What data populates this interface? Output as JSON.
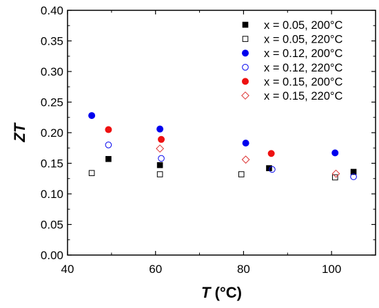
{
  "chart_data": {
    "type": "scatter",
    "xlabel": "T (°C)",
    "xlabel_var": "T",
    "xlabel_unit": " (°C)",
    "ylabel": "ZT",
    "xlim": [
      40,
      110
    ],
    "ylim": [
      0.0,
      0.4
    ],
    "x_ticks": [
      "40",
      "60",
      "80",
      "100"
    ],
    "y_ticks": [
      "0.00",
      "0.05",
      "0.10",
      "0.15",
      "0.20",
      "0.25",
      "0.30",
      "0.35",
      "0.40"
    ],
    "legend_position": "top-right",
    "grid": false,
    "series": [
      {
        "name": "x = 0.05, 200°C",
        "marker": "square",
        "filled": true,
        "color": "#000000",
        "points": [
          [
            49.3,
            0.157
          ],
          [
            61.0,
            0.147
          ],
          [
            85.8,
            0.142
          ],
          [
            105.0,
            0.136
          ]
        ]
      },
      {
        "name": "x = 0.05, 220°C",
        "marker": "square",
        "filled": false,
        "color": "#000000",
        "points": [
          [
            45.5,
            0.134
          ],
          [
            61.0,
            0.132
          ],
          [
            79.5,
            0.132
          ],
          [
            100.8,
            0.127
          ]
        ]
      },
      {
        "name": "x = 0.12, 200°C",
        "marker": "circle",
        "filled": true,
        "color": "#0000ee",
        "points": [
          [
            45.5,
            0.228
          ],
          [
            61.0,
            0.206
          ],
          [
            80.5,
            0.183
          ],
          [
            100.8,
            0.167
          ]
        ]
      },
      {
        "name": "x = 0.12, 220°C",
        "marker": "circle",
        "filled": false,
        "color": "#0000ee",
        "points": [
          [
            49.3,
            0.18
          ],
          [
            61.3,
            0.158
          ],
          [
            86.5,
            0.14
          ],
          [
            105.0,
            0.128
          ]
        ]
      },
      {
        "name": "x = 0.15, 200°C",
        "marker": "circle",
        "filled": true,
        "color": "#ee1111",
        "points": [
          [
            49.3,
            0.205
          ],
          [
            61.3,
            0.189
          ],
          [
            86.3,
            0.166
          ]
        ]
      },
      {
        "name": "x = 0.15, 220°C",
        "marker": "diamond",
        "filled": false,
        "color": "#dd3333",
        "points": [
          [
            61.0,
            0.174
          ],
          [
            80.5,
            0.156
          ],
          [
            101.0,
            0.133
          ]
        ]
      }
    ]
  }
}
